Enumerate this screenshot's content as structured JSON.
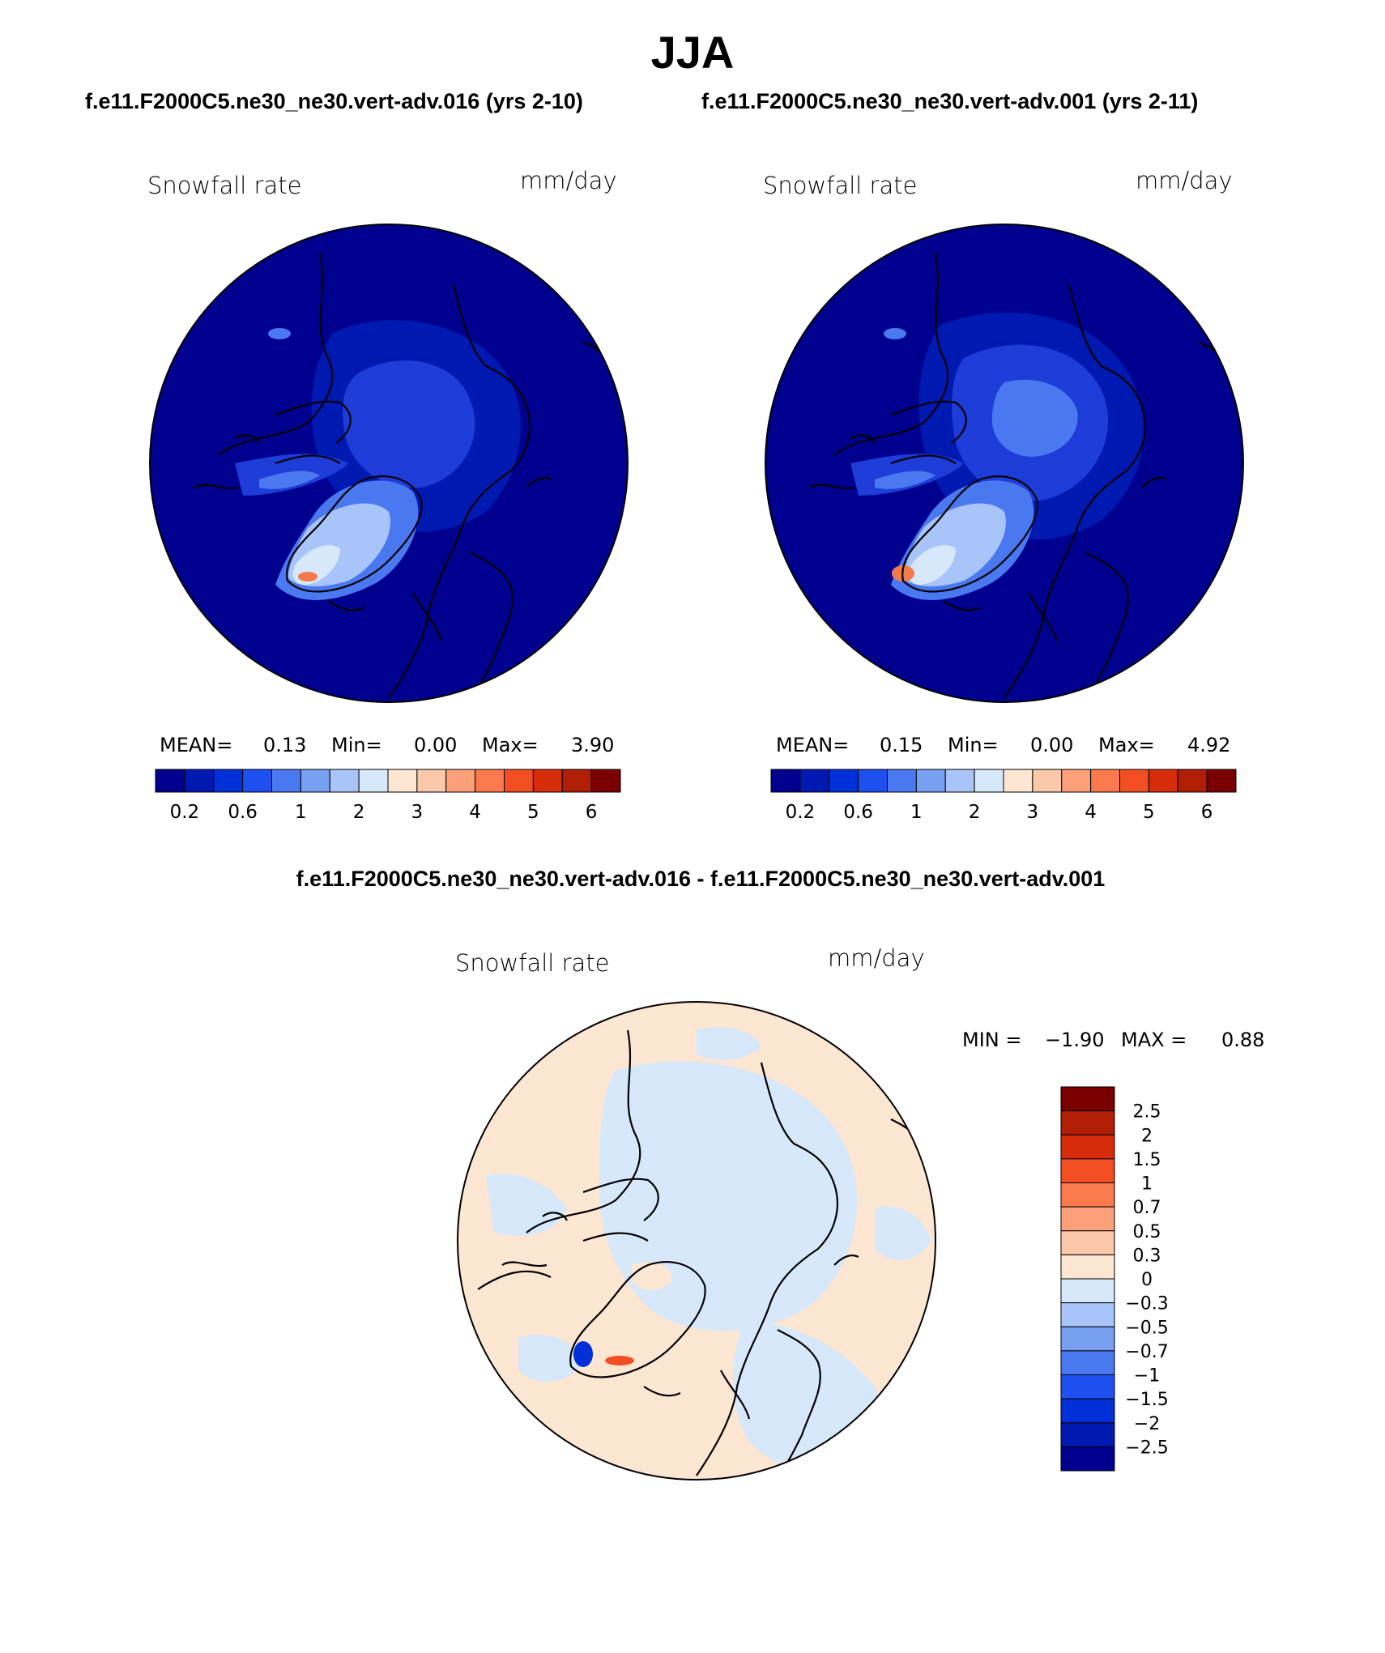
{
  "figure": {
    "season": "JJA",
    "case_left": "f.e11.F2000C5.ne30_ne30.vert-adv.016 (yrs 2-10)",
    "case_right": "f.e11.F2000C5.ne30_ne30.vert-adv.001 (yrs 2-11)",
    "diff_title": "f.e11.F2000C5.ne30_ne30.vert-adv.016 - f.e11.F2000C5.ne30_ne30.vert-adv.001"
  },
  "panels": {
    "left": {
      "variable": "Snowfall rate",
      "units": "mm/day",
      "mean_label": "MEAN=",
      "mean_value": "0.13",
      "min_label": "Min=",
      "min_value": "0.00",
      "max_label": "Max=",
      "max_value": "3.90"
    },
    "right": {
      "variable": "Snowfall rate",
      "units": "mm/day",
      "mean_label": "MEAN=",
      "mean_value": "0.15",
      "min_label": "Min=",
      "min_value": "0.00",
      "max_label": "Max=",
      "max_value": "4.92"
    },
    "diff": {
      "variable": "Snowfall rate",
      "units": "mm/day",
      "min_label": "MIN =",
      "min_value": "−1.90",
      "max_label": "MAX =",
      "max_value": "0.88"
    }
  },
  "colorbar_abs": {
    "colors": [
      "#00008f",
      "#0019b0",
      "#0030d8",
      "#1e50f0",
      "#4a78f0",
      "#78a0f0",
      "#a8c4f8",
      "#d6e8fa",
      "#fde6d2",
      "#fcc8aa",
      "#fca07a",
      "#fa7a4e",
      "#f24e22",
      "#d62c0a",
      "#b01e06",
      "#7a0000"
    ],
    "tick_labels": [
      "0.2",
      "0.6",
      "1",
      "2",
      "3",
      "4",
      "5",
      "6"
    ]
  },
  "colorbar_diff": {
    "colors": [
      "#7a0000",
      "#b01e06",
      "#d62c0a",
      "#f24e22",
      "#fa7a4e",
      "#fca07a",
      "#fcc8aa",
      "#fde6d2",
      "#d6e8fa",
      "#a8c4f8",
      "#78a0f0",
      "#4a78f0",
      "#1e50f0",
      "#0030d8",
      "#0019b0",
      "#00008f"
    ],
    "tick_labels": [
      "2.5",
      "2",
      "1.5",
      "1",
      "0.7",
      "0.5",
      "0.3",
      "0",
      "−0.3",
      "−0.5",
      "−0.7",
      "−1",
      "−1.5",
      "−2",
      "−2.5"
    ]
  },
  "map_colors": {
    "base_abs": "#00008f",
    "tier1": "#0019b0",
    "tier2": "#1e3cd8",
    "tier3": "#4a78f0",
    "tier4": "#a8c4f8",
    "tier5": "#d6e8fa",
    "peak": "#f27a4e",
    "diff_neg": "#d6e8fa",
    "diff_pos": "#fde6d2",
    "coast": "#000000"
  }
}
